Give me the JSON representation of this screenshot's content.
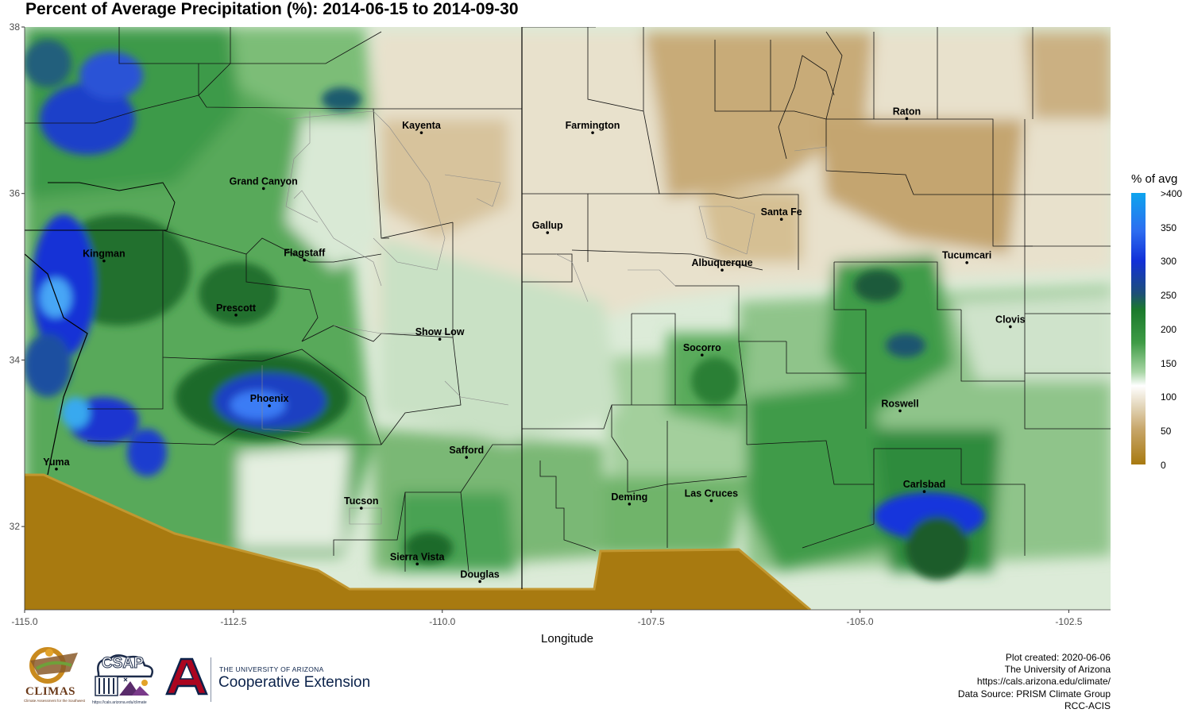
{
  "title": "Percent of Average Precipitation (%): 2014-06-15 to 2014-09-30",
  "x_axis": {
    "title": "Longitude",
    "range": [
      -115.0,
      -102.0
    ],
    "ticks": [
      -115.0,
      -112.5,
      -110.0,
      -107.5,
      -105.0,
      -102.5
    ],
    "tick_labels": [
      "-115.0",
      "-112.5",
      "-110.0",
      "-107.5",
      "-105.0",
      "-102.5"
    ]
  },
  "y_axis": {
    "range": [
      31.0,
      38.0
    ],
    "ticks": [
      32,
      34,
      36,
      38
    ],
    "tick_labels": [
      "32",
      "34",
      "36",
      "38"
    ]
  },
  "cities": [
    {
      "name": "Kayenta",
      "lon": -110.25,
      "lat": 36.73
    },
    {
      "name": "Farmington",
      "lon": -108.2,
      "lat": 36.73
    },
    {
      "name": "Raton",
      "lon": -104.44,
      "lat": 36.9
    },
    {
      "name": "Grand Canyon",
      "lon": -112.14,
      "lat": 36.06
    },
    {
      "name": "Santa Fe",
      "lon": -105.94,
      "lat": 35.69
    },
    {
      "name": "Gallup",
      "lon": -108.74,
      "lat": 35.53
    },
    {
      "name": "Kingman",
      "lon": -114.05,
      "lat": 35.19
    },
    {
      "name": "Flagstaff",
      "lon": -111.65,
      "lat": 35.2
    },
    {
      "name": "Albuquerque",
      "lon": -106.65,
      "lat": 35.08
    },
    {
      "name": "Tucumcari",
      "lon": -103.72,
      "lat": 35.17
    },
    {
      "name": "Prescott",
      "lon": -112.47,
      "lat": 34.54
    },
    {
      "name": "Clovis",
      "lon": -103.2,
      "lat": 34.4
    },
    {
      "name": "Show Low",
      "lon": -110.03,
      "lat": 34.25
    },
    {
      "name": "Socorro",
      "lon": -106.89,
      "lat": 34.06
    },
    {
      "name": "Phoenix",
      "lon": -112.07,
      "lat": 33.45
    },
    {
      "name": "Roswell",
      "lon": -104.52,
      "lat": 33.39
    },
    {
      "name": "Safford",
      "lon": -109.71,
      "lat": 32.83
    },
    {
      "name": "Yuma",
      "lon": -114.62,
      "lat": 32.69
    },
    {
      "name": "Carlsbad",
      "lon": -104.23,
      "lat": 32.42
    },
    {
      "name": "Deming",
      "lon": -107.76,
      "lat": 32.27
    },
    {
      "name": "Las Cruces",
      "lon": -106.78,
      "lat": 32.31
    },
    {
      "name": "Tucson",
      "lon": -110.97,
      "lat": 32.22
    },
    {
      "name": "Sierra Vista",
      "lon": -110.3,
      "lat": 31.55
    },
    {
      "name": "Douglas",
      "lon": -109.55,
      "lat": 31.34
    }
  ],
  "legend": {
    "title": "% of avg",
    "tick_labels": [
      ">400",
      "350",
      "300",
      "250",
      "200",
      "150",
      "100",
      "50",
      "0"
    ]
  },
  "credits": [
    "Plot created: 2020-06-06",
    "The University of Arizona",
    "https://cals.arizona.edu/climate/",
    "Data Source: PRISM Climate Group",
    "RCC-ACIS"
  ],
  "logos": {
    "climas": "CLIMAS",
    "climas_sub": "Climate Assessment for the Southwest",
    "csap": "CSAP",
    "csap_url": "https://cals.arizona.edu/climate",
    "ua_university": "THE UNIVERSITY OF ARIZONA",
    "ua_extension": "Cooperative Extension"
  },
  "colors": {
    "no_data": "#a87a10",
    "high": "#0ea5ee",
    "mid_green": "#1b7a2c",
    "average": "#ffffff",
    "dry": "#c7a66a"
  }
}
